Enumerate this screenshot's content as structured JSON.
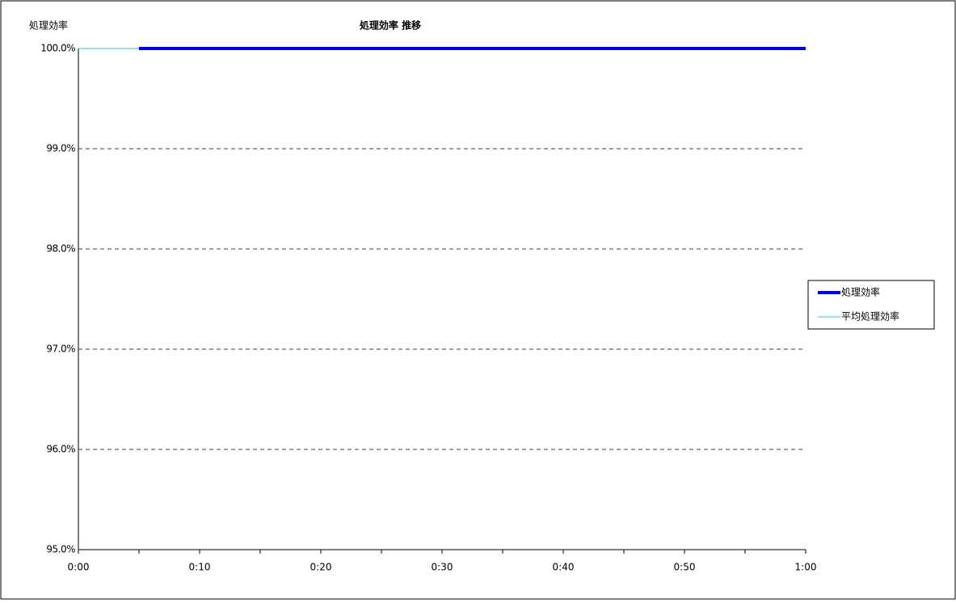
{
  "chart_data": {
    "type": "line",
    "title": "処理効率 推移",
    "y_label": "処理効率",
    "x": [
      0,
      5,
      10,
      15,
      20,
      25,
      30,
      35,
      40,
      45,
      50,
      55,
      60
    ],
    "series": [
      {
        "name": "処理効率",
        "color": "#0000ee",
        "width": 4,
        "values": [
          null,
          100,
          100,
          100,
          100,
          100,
          100,
          100,
          100,
          100,
          100,
          100,
          100
        ]
      },
      {
        "name": "平均処理効率",
        "color": "#33bbee",
        "width": 1,
        "values": [
          100,
          100,
          100,
          100,
          100,
          100,
          100,
          100,
          100,
          100,
          100,
          100,
          100
        ]
      }
    ],
    "xlim": [
      0,
      60
    ],
    "xticks": [
      {
        "value": 0,
        "label": "0:00"
      },
      {
        "value": 10,
        "label": "0:10"
      },
      {
        "value": 20,
        "label": "0:20"
      },
      {
        "value": 30,
        "label": "0:30"
      },
      {
        "value": 40,
        "label": "0:40"
      },
      {
        "value": 50,
        "label": "0:50"
      },
      {
        "value": 60,
        "label": "1:00"
      }
    ],
    "ylim": [
      95,
      100
    ],
    "yticks": [
      {
        "value": 95,
        "label": "95.0%"
      },
      {
        "value": 96,
        "label": "96.0%"
      },
      {
        "value": 97,
        "label": "97.0%"
      },
      {
        "value": 98,
        "label": "98.0%"
      },
      {
        "value": 99,
        "label": "99.0%"
      },
      {
        "value": 100,
        "label": "100.0%"
      }
    ],
    "grid": true,
    "legend": "right"
  }
}
